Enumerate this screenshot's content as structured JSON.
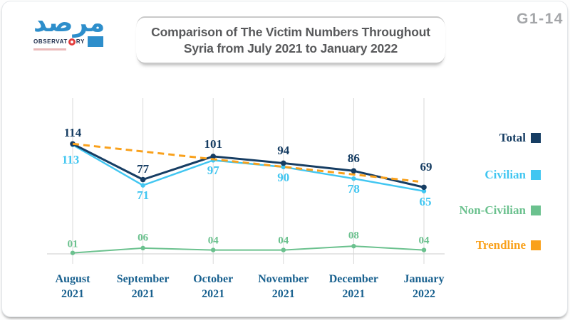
{
  "page_code": "G1-14",
  "logo": {
    "arabic_name": "مرصد",
    "wordmark_left": "OBSERVAT",
    "wordmark_right": "RY"
  },
  "title": {
    "line1": "Comparison of The Victim Numbers Throughout",
    "line2": "Syria from July 2021 to January 2022"
  },
  "chart_data": {
    "type": "line",
    "categories": [
      "August 2021",
      "September 2021",
      "October 2021",
      "November 2021",
      "December 2021",
      "January 2022"
    ],
    "categories_lines": [
      [
        "August",
        "2021"
      ],
      [
        "September",
        "2021"
      ],
      [
        "October",
        "2021"
      ],
      [
        "November",
        "2021"
      ],
      [
        "December",
        "2021"
      ],
      [
        "January",
        "2022"
      ]
    ],
    "series": [
      {
        "name": "Total",
        "color": "#163d63",
        "values": [
          114,
          77,
          101,
          94,
          86,
          69
        ],
        "labels": [
          "114",
          "77",
          "101",
          "94",
          "86",
          "69"
        ]
      },
      {
        "name": "Civilian",
        "color": "#41c6f1",
        "values": [
          113,
          71,
          97,
          90,
          78,
          65
        ],
        "labels": [
          "113",
          "71",
          "97",
          "90",
          "78",
          "65"
        ]
      },
      {
        "name": "Non-Civilian",
        "color": "#6bc18e",
        "values": [
          1,
          6,
          4,
          4,
          8,
          4
        ],
        "labels": [
          "01",
          "06",
          "04",
          "04",
          "08",
          "04"
        ]
      },
      {
        "name": "Trendline",
        "color": "#f9a11c",
        "style": "dashed",
        "trend": {
          "from": 114,
          "to": 75
        }
      }
    ],
    "legend": [
      {
        "label": "Total",
        "color": "#163d63"
      },
      {
        "label": "Civilian",
        "color": "#41c6f1"
      },
      {
        "label": "Non-Civilian",
        "color": "#6bc18e"
      },
      {
        "label": "Trendline",
        "color": "#f9a11c"
      }
    ],
    "ylim": [
      0,
      130
    ],
    "grid": "vertical",
    "legend_position": "right"
  }
}
